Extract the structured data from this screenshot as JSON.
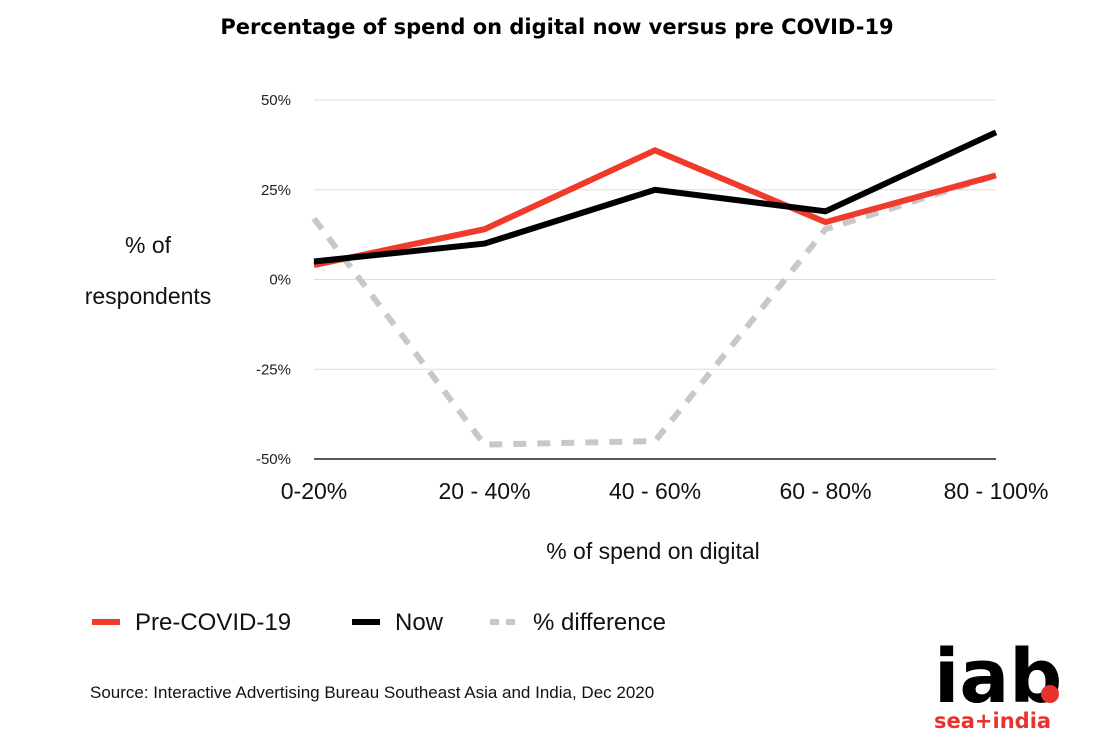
{
  "chart_data": {
    "type": "line",
    "title": "Percentage of spend on digital now versus pre COVID-19",
    "xlabel": "% of spend on digital",
    "ylabel": "% of respondents",
    "ylabel_lines": [
      "% of",
      "respondents"
    ],
    "categories": [
      "0-20%",
      "20 - 40%",
      "40 - 60%",
      "60 - 80%",
      "80 - 100%"
    ],
    "ylim": [
      -50,
      50
    ],
    "yticks": [
      50,
      25,
      0,
      -25,
      -50
    ],
    "ytick_labels": [
      "50%",
      "25%",
      "0%",
      "-25%",
      "-50%"
    ],
    "grid": true,
    "legend_position": "bottom-left",
    "series": [
      {
        "name": "Pre-COVID-19",
        "values": [
          4,
          14,
          36,
          16,
          29
        ],
        "color": "#ef3b2c",
        "style": "solid"
      },
      {
        "name": "Now",
        "values": [
          5,
          10,
          25,
          19,
          41
        ],
        "color": "#000000",
        "style": "solid"
      },
      {
        "name": "% difference",
        "values": [
          17,
          -46,
          -45,
          14,
          29
        ],
        "color": "#c8c8c8",
        "style": "dashed"
      }
    ]
  },
  "source": "Source: Interactive Advertising Bureau Southeast Asia and India, Dec 2020",
  "logo": {
    "main_text": "iab",
    "sub_text": "sea+india",
    "dot_color": "#e8322d"
  }
}
